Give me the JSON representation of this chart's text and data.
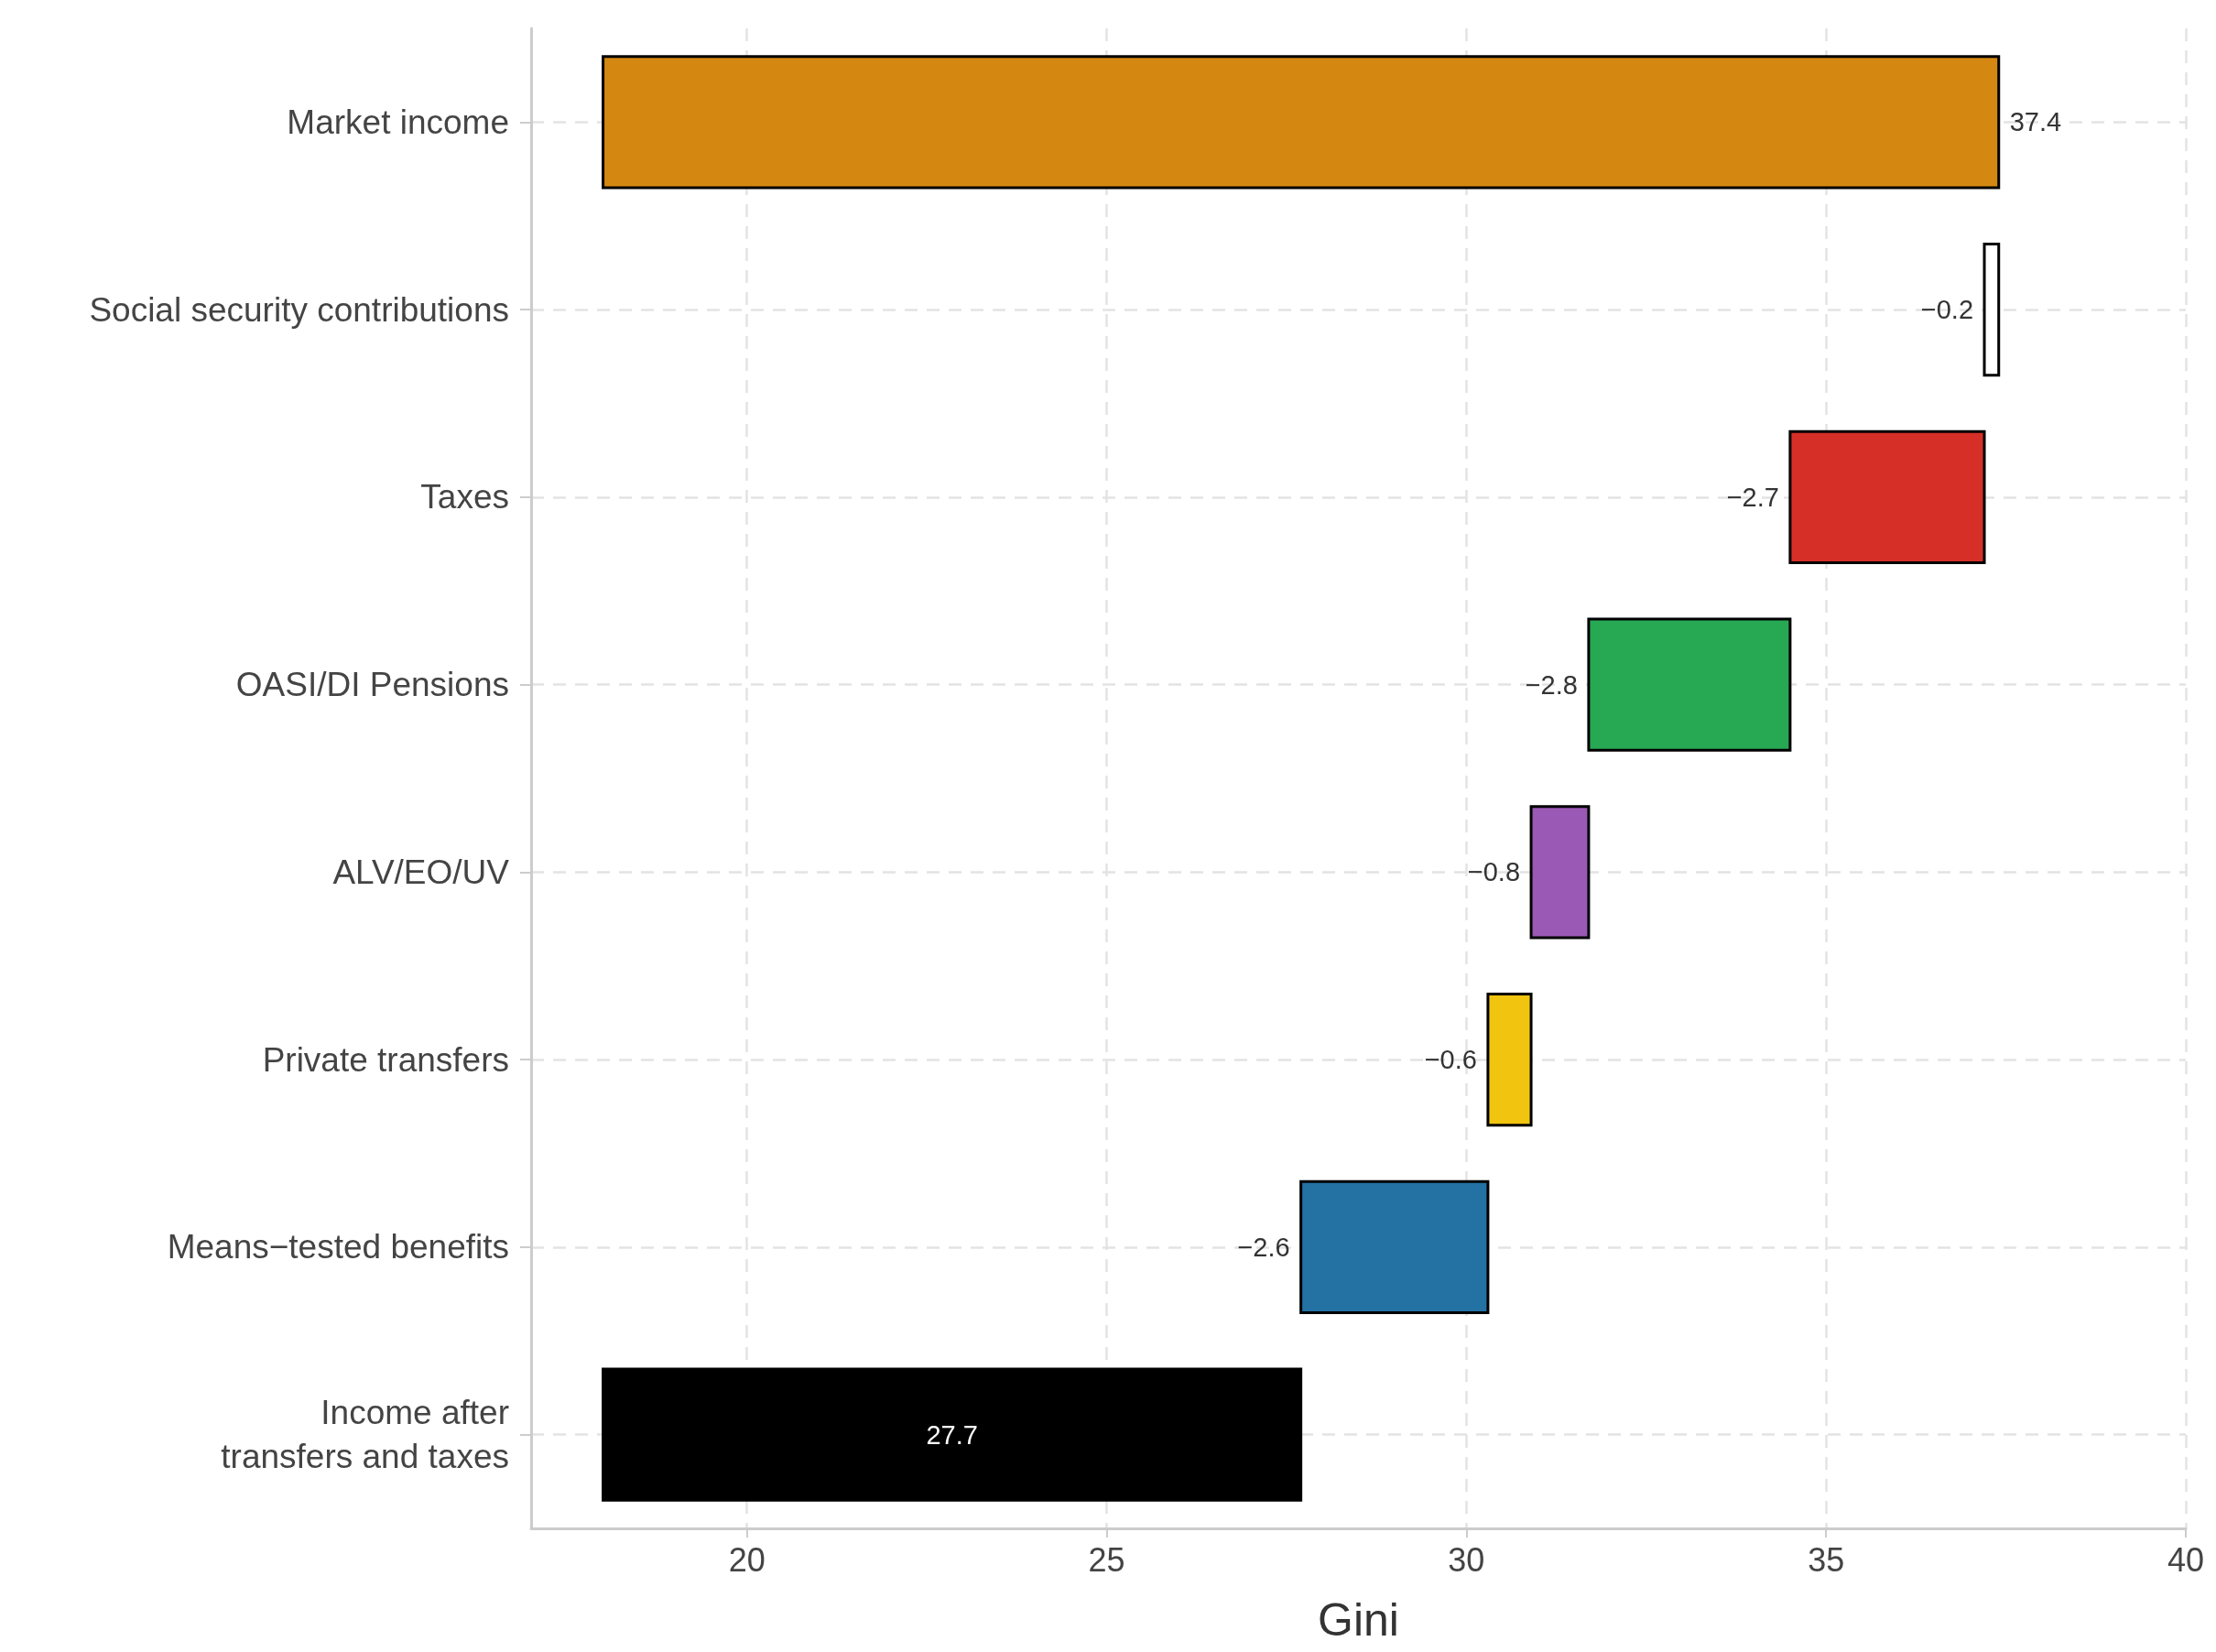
{
  "chart_data": {
    "type": "bar",
    "orientation": "horizontal",
    "xlabel": "Gini",
    "categories": [
      "Market income",
      "Social security contributions",
      "Taxes",
      "OASI/DI Pensions",
      "ALV/EO/UV",
      "Private transfers",
      "Means−tested benefits",
      "Income after\ntransfers and taxes"
    ],
    "base": [
      18,
      37.4,
      37.2,
      34.5,
      31.7,
      30.9,
      30.3,
      18
    ],
    "values": [
      19.4,
      -0.2,
      -2.7,
      -2.8,
      -0.8,
      -0.6,
      -2.6,
      9.7
    ],
    "value_labels": [
      "37.4",
      "−0.2",
      "−2.7",
      "−2.8",
      "−0.8",
      "−0.6",
      "−2.6",
      "27.7"
    ],
    "colors": [
      "#d48811",
      "#ffffff",
      "#d62f27",
      "#27a853",
      "#9b59b6",
      "#f1c40f",
      "#2471a3",
      "#000000"
    ],
    "xlim": [
      17,
      40
    ],
    "xticks": [
      20,
      25,
      30,
      35,
      40
    ],
    "grid": true
  }
}
